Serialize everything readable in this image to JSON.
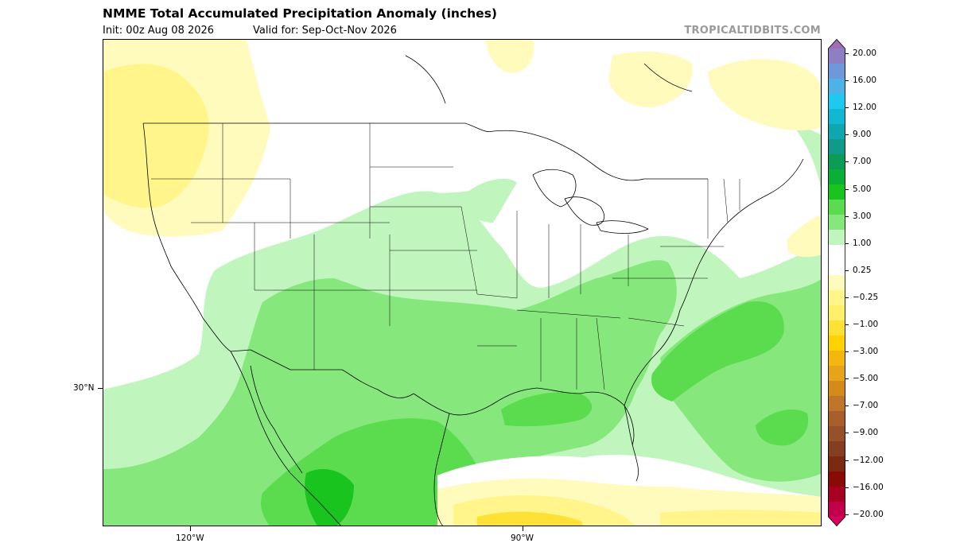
{
  "header": {
    "title": "NMME Total Accumulated Precipitation Anomaly (inches)",
    "init": "Init: 00z Aug 08 2026",
    "valid": "Valid for: Sep-Oct-Nov 2026",
    "brand": "TROPICALTIDBITS.COM"
  },
  "axes": {
    "lat_label": "30°N",
    "lon_labels": [
      "120°W",
      "90°W"
    ]
  },
  "colorbar": {
    "labels": [
      "20.00",
      "16.00",
      "12.00",
      "9.00",
      "7.00",
      "5.00",
      "3.00",
      "1.00",
      "0.25",
      "−0.25",
      "−1.00",
      "−3.00",
      "−5.00",
      "−7.00",
      "−9.00",
      "−12.00",
      "−16.00",
      "−20.00"
    ],
    "colors": [
      "#a36bb3",
      "#8e7fc4",
      "#6f98d8",
      "#4fb2e6",
      "#1ec8f0",
      "#12b8d2",
      "#10a6b0",
      "#0f9a8a",
      "#0c9c55",
      "#0bae36",
      "#19c41f",
      "#5bdc4f",
      "#86e87c",
      "#c0f5bd",
      "#ffffff",
      "#ffffff",
      "#fffbbd",
      "#fff58a",
      "#fef06a",
      "#ffe135",
      "#ffd200",
      "#f4b710",
      "#e6a418",
      "#d48b1c",
      "#c0762a",
      "#a85f2c",
      "#96502a",
      "#843f20",
      "#7a2a10",
      "#8a0b05",
      "#a80020",
      "#c2004a",
      "#d9005e"
    ]
  }
}
